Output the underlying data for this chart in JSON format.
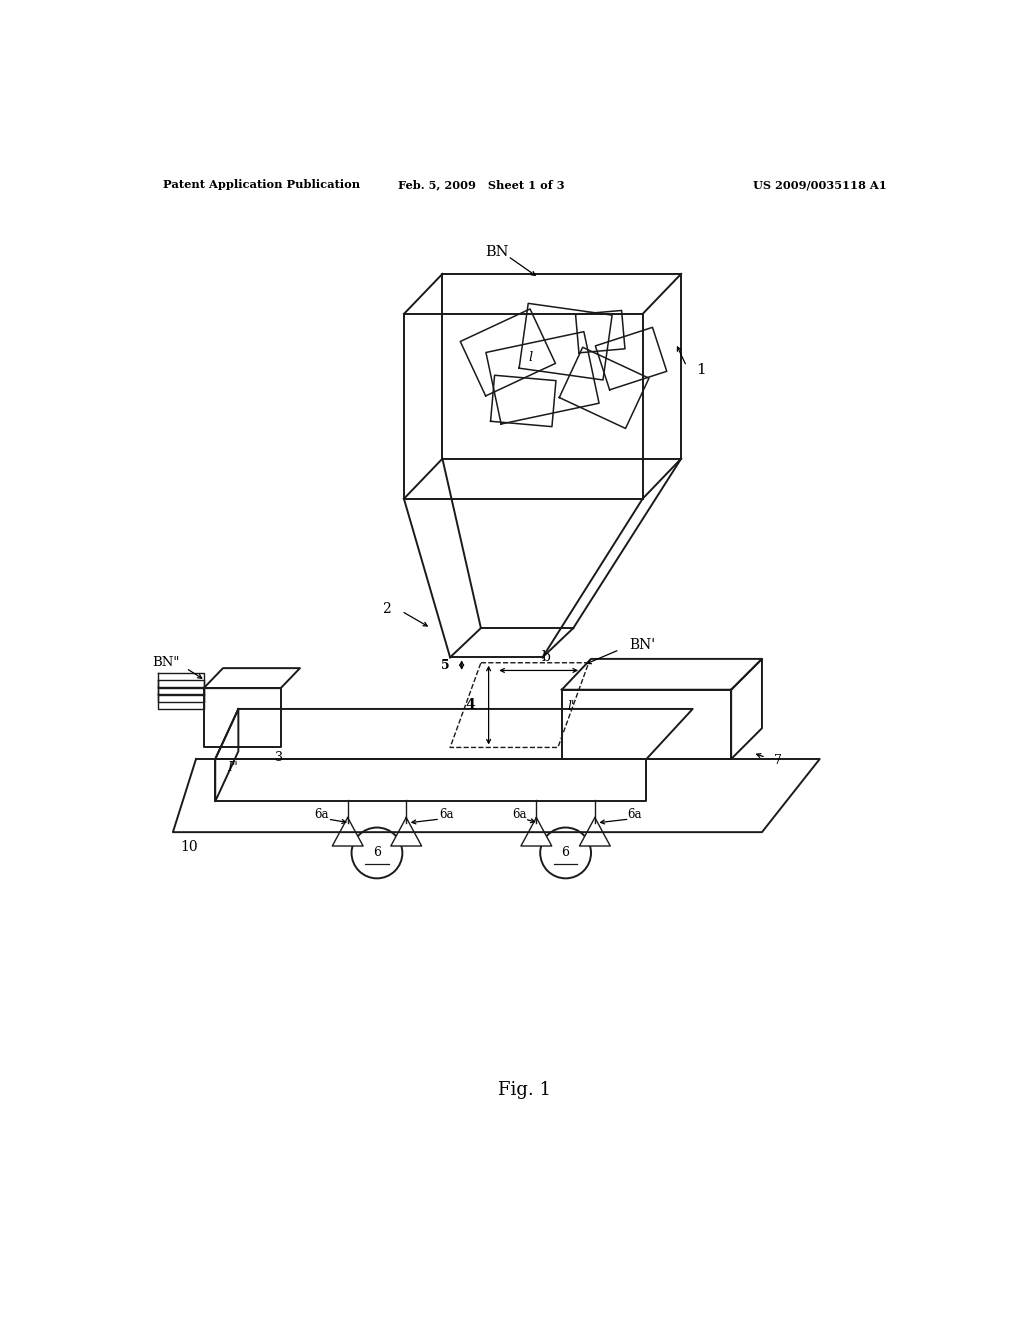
{
  "background_color": "#ffffff",
  "line_color": "#1a1a1a",
  "header_left": "Patent Application Publication",
  "header_mid": "Feb. 5, 2009   Sheet 1 of 3",
  "header_right": "US 2009/0035118 A1",
  "footer": "Fig. 1",
  "fig_width": 10.24,
  "fig_height": 13.2,
  "sheets_above_hopper": [
    [
      5.35,
      10.35,
      1.3,
      0.95,
      12
    ],
    [
      5.65,
      10.82,
      1.1,
      0.85,
      -8
    ],
    [
      4.9,
      10.68,
      1.0,
      0.78,
      25
    ],
    [
      6.15,
      10.22,
      0.95,
      0.72,
      -25
    ],
    [
      6.5,
      10.6,
      0.78,
      0.6,
      18
    ],
    [
      5.1,
      10.05,
      0.8,
      0.6,
      -5
    ],
    [
      6.1,
      10.95,
      0.6,
      0.5,
      5
    ]
  ]
}
